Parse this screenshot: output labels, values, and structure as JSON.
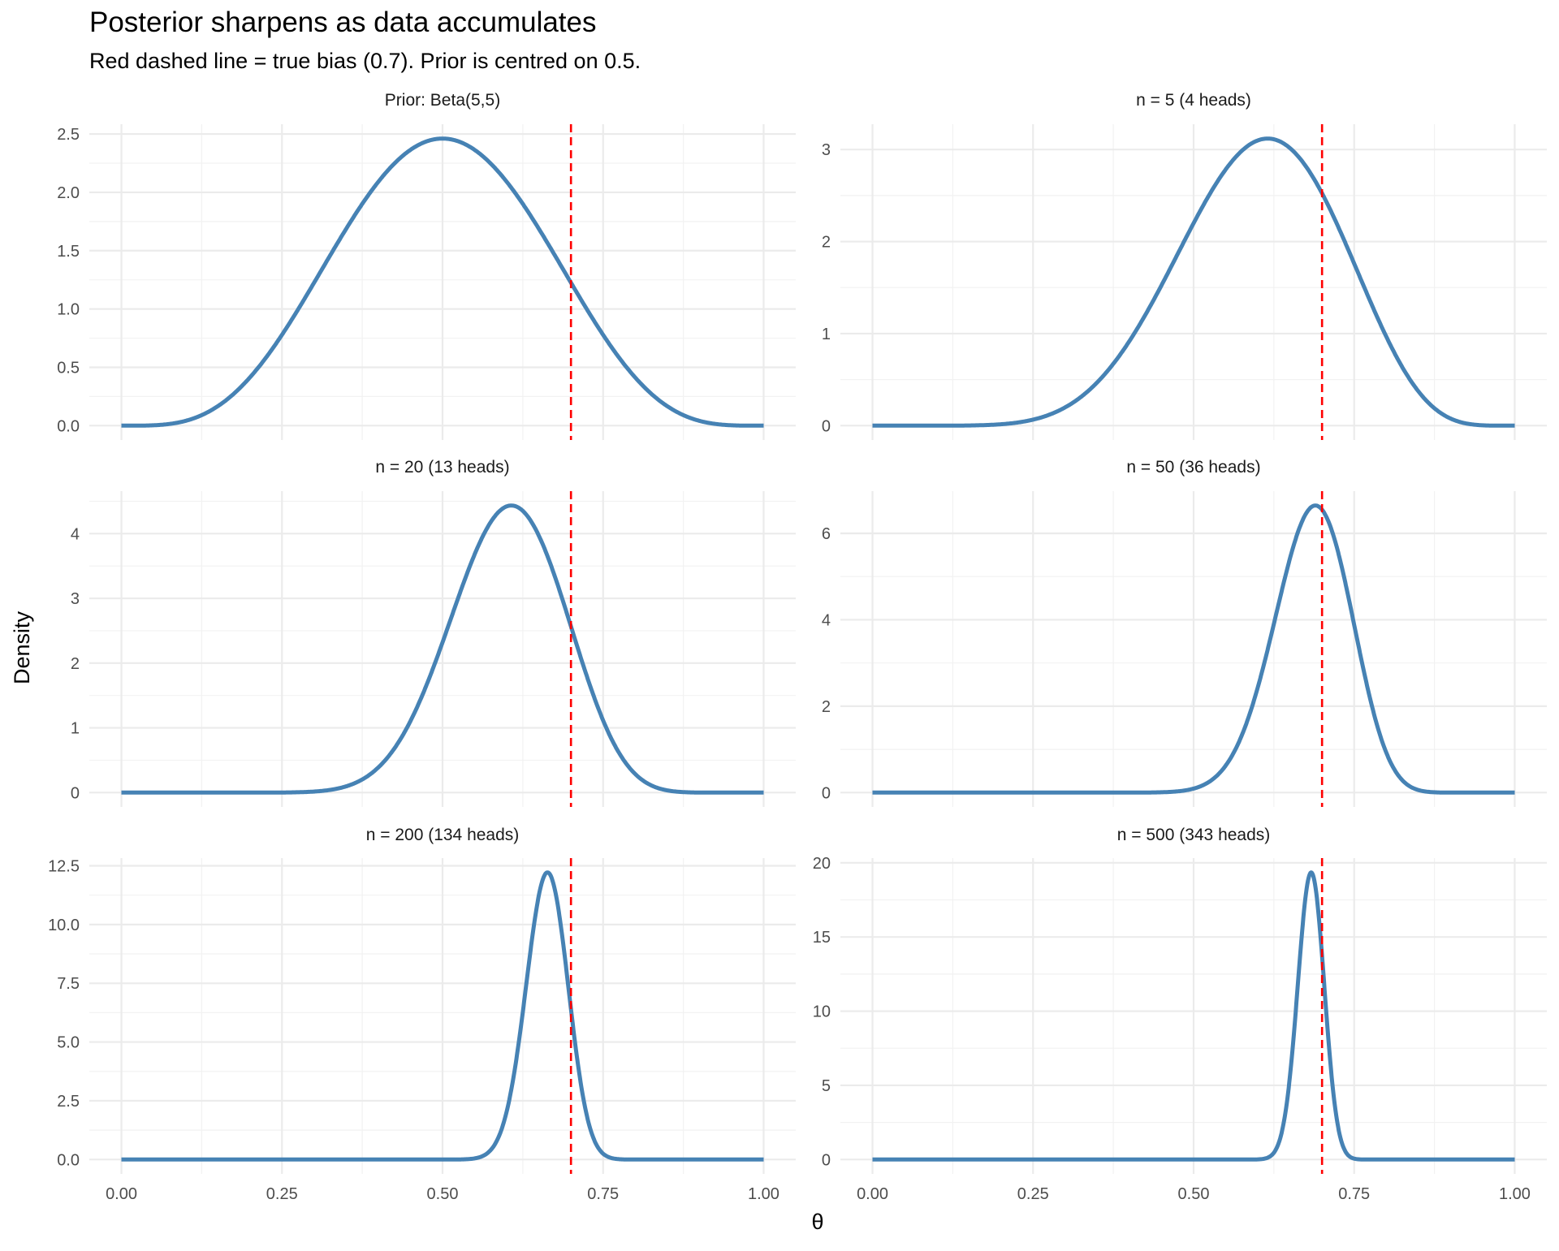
{
  "chart_data": {
    "type": "line",
    "title": "Posterior sharpens as data accumulates",
    "subtitle": "Red dashed line = true bias (0.7). Prior is centred on 0.5.",
    "xlabel": "θ",
    "ylabel": "Density",
    "xlim": [
      0,
      1
    ],
    "x_ticks": [
      "0.00",
      "0.25",
      "0.50",
      "0.75",
      "1.00"
    ],
    "x_tick_values": [
      0,
      0.25,
      0.5,
      0.75,
      1
    ],
    "grid": true,
    "reference_line": {
      "x": 0.7,
      "style": "dashed",
      "color": "#FF0000"
    },
    "curve_color": "#4682B4",
    "prior": {
      "alpha": 5,
      "beta": 5
    },
    "panels": [
      {
        "title": "Prior: Beta(5,5)",
        "n": 0,
        "heads": 0,
        "y_ticks": [
          "0.0",
          "0.5",
          "1.0",
          "1.5",
          "2.0",
          "2.5"
        ],
        "y_tick_values": [
          0,
          0.5,
          1,
          1.5,
          2,
          2.5
        ]
      },
      {
        "title": "n = 5  (4 heads)",
        "n": 5,
        "heads": 4,
        "y_ticks": [
          "0",
          "1",
          "2",
          "3"
        ],
        "y_tick_values": [
          0,
          1,
          2,
          3
        ]
      },
      {
        "title": "n = 20  (13 heads)",
        "n": 20,
        "heads": 13,
        "y_ticks": [
          "0",
          "1",
          "2",
          "3",
          "4"
        ],
        "y_tick_values": [
          0,
          1,
          2,
          3,
          4
        ]
      },
      {
        "title": "n = 50  (36 heads)",
        "n": 50,
        "heads": 36,
        "y_ticks": [
          "0",
          "2",
          "4",
          "6"
        ],
        "y_tick_values": [
          0,
          2,
          4,
          6
        ]
      },
      {
        "title": "n = 200  (134 heads)",
        "n": 200,
        "heads": 134,
        "y_ticks": [
          "0.0",
          "2.5",
          "5.0",
          "7.5",
          "10.0",
          "12.5"
        ],
        "y_tick_values": [
          0,
          2.5,
          5,
          7.5,
          10,
          12.5
        ]
      },
      {
        "title": "n = 500  (343 heads)",
        "n": 500,
        "heads": 343,
        "y_ticks": [
          "0",
          "5",
          "10",
          "15",
          "20"
        ],
        "y_tick_values": [
          0,
          5,
          10,
          15,
          20
        ]
      }
    ]
  }
}
